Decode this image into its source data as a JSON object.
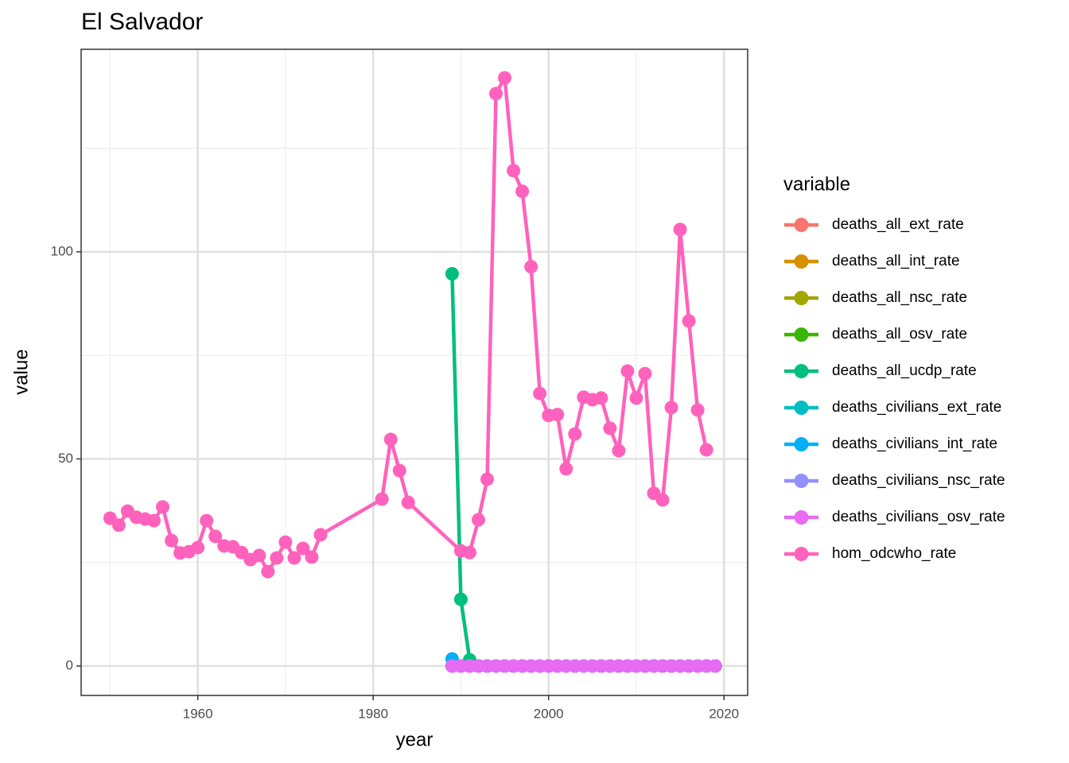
{
  "chart_data": {
    "type": "line",
    "title": "El Salvador",
    "x_label": "year",
    "y_label": "value",
    "legend_title": "variable",
    "legend_position": "right",
    "xlim": [
      1946.7,
      2022.7
    ],
    "xticks": [
      1960,
      1980,
      2000,
      2020
    ],
    "minor_xticks": [
      1950,
      1970,
      1990,
      2010
    ],
    "ylim": [
      -7.1,
      148.9
    ],
    "yticks": [
      0,
      50,
      100
    ],
    "minor_yticks": [
      25,
      75,
      125
    ],
    "grid": true,
    "series": [
      {
        "name": "deaths_all_ext_rate",
        "color": "#F8766D",
        "x": [
          1989,
          1990,
          1991,
          1992,
          1993,
          1994,
          1995,
          1996,
          1997,
          1998,
          1999,
          2000,
          2001,
          2002,
          2003,
          2004,
          2005,
          2006,
          2007,
          2008,
          2009,
          2010,
          2011,
          2012,
          2013,
          2014,
          2015,
          2016,
          2017,
          2018,
          2019
        ],
        "values": [
          0,
          0,
          0,
          0,
          0,
          0,
          0,
          0,
          0,
          0,
          0,
          0,
          0,
          0,
          0,
          0,
          0,
          0,
          0,
          0,
          0,
          0,
          0,
          0,
          0,
          0,
          0,
          0,
          0,
          0,
          0
        ]
      },
      {
        "name": "deaths_all_int_rate",
        "color": "#D89000",
        "x": [
          1989,
          1990,
          1991,
          1992,
          1993,
          1994,
          1995,
          1996,
          1997,
          1998,
          1999,
          2000,
          2001,
          2002,
          2003,
          2004,
          2005,
          2006,
          2007,
          2008,
          2009,
          2010,
          2011,
          2012,
          2013,
          2014,
          2015,
          2016,
          2017,
          2018,
          2019
        ],
        "values": [
          0,
          0,
          0,
          0,
          0,
          0,
          0,
          0,
          0,
          0,
          0,
          0,
          0,
          0,
          0,
          0,
          0,
          0,
          0,
          0,
          0,
          0,
          0,
          0,
          0,
          0,
          0,
          0,
          0,
          0,
          0
        ]
      },
      {
        "name": "deaths_all_nsc_rate",
        "color": "#A3A500",
        "x": [
          1989,
          1990,
          1991,
          1992,
          1993,
          1994,
          1995,
          1996,
          1997,
          1998,
          1999,
          2000,
          2001,
          2002,
          2003,
          2004,
          2005,
          2006,
          2007,
          2008,
          2009,
          2010,
          2011,
          2012,
          2013,
          2014,
          2015,
          2016,
          2017,
          2018,
          2019
        ],
        "values": [
          0,
          0,
          0,
          0,
          0,
          0,
          0,
          0,
          0,
          0,
          0,
          0,
          0,
          0,
          0,
          0,
          0,
          0,
          0,
          0,
          0,
          0,
          0,
          0,
          0,
          0,
          0,
          0,
          0,
          0,
          0
        ]
      },
      {
        "name": "deaths_all_osv_rate",
        "color": "#39B600",
        "x": [
          1989,
          1990,
          1991,
          1992,
          1993,
          1994,
          1995,
          1996,
          1997,
          1998,
          1999,
          2000,
          2001,
          2002,
          2003,
          2004,
          2005,
          2006,
          2007,
          2008,
          2009,
          2010,
          2011,
          2012,
          2013,
          2014,
          2015,
          2016,
          2017,
          2018,
          2019
        ],
        "values": [
          0,
          0,
          0,
          0,
          0,
          0,
          0,
          0,
          0,
          0,
          0,
          0,
          0,
          0,
          0,
          0,
          0,
          0,
          0,
          0,
          0,
          0,
          0,
          0,
          0,
          0,
          0,
          0,
          0,
          0,
          0
        ]
      },
      {
        "name": "deaths_all_ucdp_rate",
        "color": "#00BF7D",
        "x": [
          1989,
          1990,
          1991,
          1992,
          1993,
          1994,
          1995,
          1996,
          1997,
          1998,
          1999,
          2000,
          2001,
          2002,
          2003,
          2004,
          2005,
          2006,
          2007,
          2008,
          2009,
          2010,
          2011,
          2012,
          2013,
          2014,
          2015,
          2016,
          2017,
          2018,
          2019
        ],
        "values": [
          94.7,
          16.1,
          1.5,
          0,
          0,
          0,
          0,
          0,
          0,
          0,
          0,
          0,
          0,
          0,
          0,
          0,
          0,
          0,
          0,
          0,
          0,
          0,
          0,
          0,
          0,
          0,
          0,
          0,
          0,
          0,
          0
        ]
      },
      {
        "name": "deaths_civilians_ext_rate",
        "color": "#00BFC4",
        "x": [
          1989,
          1990,
          1991,
          1992,
          1993,
          1994,
          1995,
          1996,
          1997,
          1998,
          1999,
          2000,
          2001,
          2002,
          2003,
          2004,
          2005,
          2006,
          2007,
          2008,
          2009,
          2010,
          2011,
          2012,
          2013,
          2014,
          2015,
          2016,
          2017,
          2018,
          2019
        ],
        "values": [
          0,
          0,
          0,
          0,
          0,
          0,
          0,
          0,
          0,
          0,
          0,
          0,
          0,
          0,
          0,
          0,
          0,
          0,
          0,
          0,
          0,
          0,
          0,
          0,
          0,
          0,
          0,
          0,
          0,
          0,
          0
        ]
      },
      {
        "name": "deaths_civilians_int_rate",
        "color": "#00B0F6",
        "x": [
          1989,
          1990,
          1991,
          1992,
          1993,
          1994,
          1995,
          1996,
          1997,
          1998,
          1999,
          2000,
          2001,
          2002,
          2003,
          2004,
          2005,
          2006,
          2007,
          2008,
          2009,
          2010,
          2011,
          2012,
          2013,
          2014,
          2015,
          2016,
          2017,
          2018,
          2019
        ],
        "values": [
          1.7,
          0,
          0,
          0,
          0,
          0,
          0,
          0,
          0,
          0,
          0,
          0,
          0,
          0,
          0,
          0,
          0,
          0,
          0,
          0,
          0,
          0,
          0,
          0,
          0,
          0,
          0,
          0,
          0,
          0,
          0
        ]
      },
      {
        "name": "deaths_civilians_nsc_rate",
        "color": "#9590FF",
        "x": [
          1989,
          1990,
          1991,
          1992,
          1993,
          1994,
          1995,
          1996,
          1997,
          1998,
          1999,
          2000,
          2001,
          2002,
          2003,
          2004,
          2005,
          2006,
          2007,
          2008,
          2009,
          2010,
          2011,
          2012,
          2013,
          2014,
          2015,
          2016,
          2017,
          2018,
          2019
        ],
        "values": [
          0,
          0,
          0,
          0,
          0,
          0,
          0,
          0,
          0,
          0,
          0,
          0,
          0,
          0,
          0,
          0,
          0,
          0,
          0,
          0,
          0,
          0,
          0,
          0,
          0,
          0,
          0,
          0,
          0,
          0,
          0
        ]
      },
      {
        "name": "deaths_civilians_osv_rate",
        "color": "#E76BF3",
        "x": [
          1989,
          1990,
          1991,
          1992,
          1993,
          1994,
          1995,
          1996,
          1997,
          1998,
          1999,
          2000,
          2001,
          2002,
          2003,
          2004,
          2005,
          2006,
          2007,
          2008,
          2009,
          2010,
          2011,
          2012,
          2013,
          2014,
          2015,
          2016,
          2017,
          2018,
          2019
        ],
        "values": [
          0,
          0,
          0,
          0,
          0,
          0,
          0,
          0,
          0,
          0,
          0,
          0,
          0,
          0,
          0,
          0,
          0,
          0,
          0,
          0,
          0,
          0,
          0,
          0,
          0,
          0,
          0,
          0,
          0,
          0,
          0
        ]
      },
      {
        "name": "hom_odcwho_rate",
        "color": "#FF62BC",
        "x": [
          1950,
          1951,
          1952,
          1953,
          1954,
          1955,
          1956,
          1957,
          1958,
          1959,
          1960,
          1961,
          1962,
          1963,
          1964,
          1965,
          1966,
          1967,
          1968,
          1969,
          1970,
          1971,
          1972,
          1973,
          1974,
          1981,
          1982,
          1983,
          1984,
          1990,
          1991,
          1992,
          1993,
          1994,
          1995,
          1996,
          1997,
          1998,
          1999,
          2000,
          2001,
          2002,
          2003,
          2004,
          2005,
          2006,
          2007,
          2008,
          2009,
          2010,
          2011,
          2012,
          2013,
          2014,
          2015,
          2016,
          2017,
          2018
        ],
        "values": [
          35.7,
          34.0,
          37.4,
          35.9,
          35.5,
          35.1,
          38.4,
          30.3,
          27.3,
          27.6,
          28.6,
          35.1,
          31.3,
          29.0,
          28.8,
          27.4,
          25.7,
          26.7,
          22.8,
          26.1,
          29.9,
          26.1,
          28.4,
          26.3,
          31.7,
          40.3,
          54.7,
          47.2,
          39.5,
          27.8,
          27.4,
          35.3,
          45.1,
          138.2,
          142.0,
          119.6,
          114.6,
          96.4,
          65.8,
          60.5,
          60.7,
          47.6,
          56.0,
          64.9,
          64.3,
          64.7,
          57.4,
          52.0,
          71.2,
          64.7,
          70.6,
          41.7,
          40.1,
          62.4,
          105.4,
          83.3,
          61.8,
          52.2
        ]
      }
    ]
  }
}
